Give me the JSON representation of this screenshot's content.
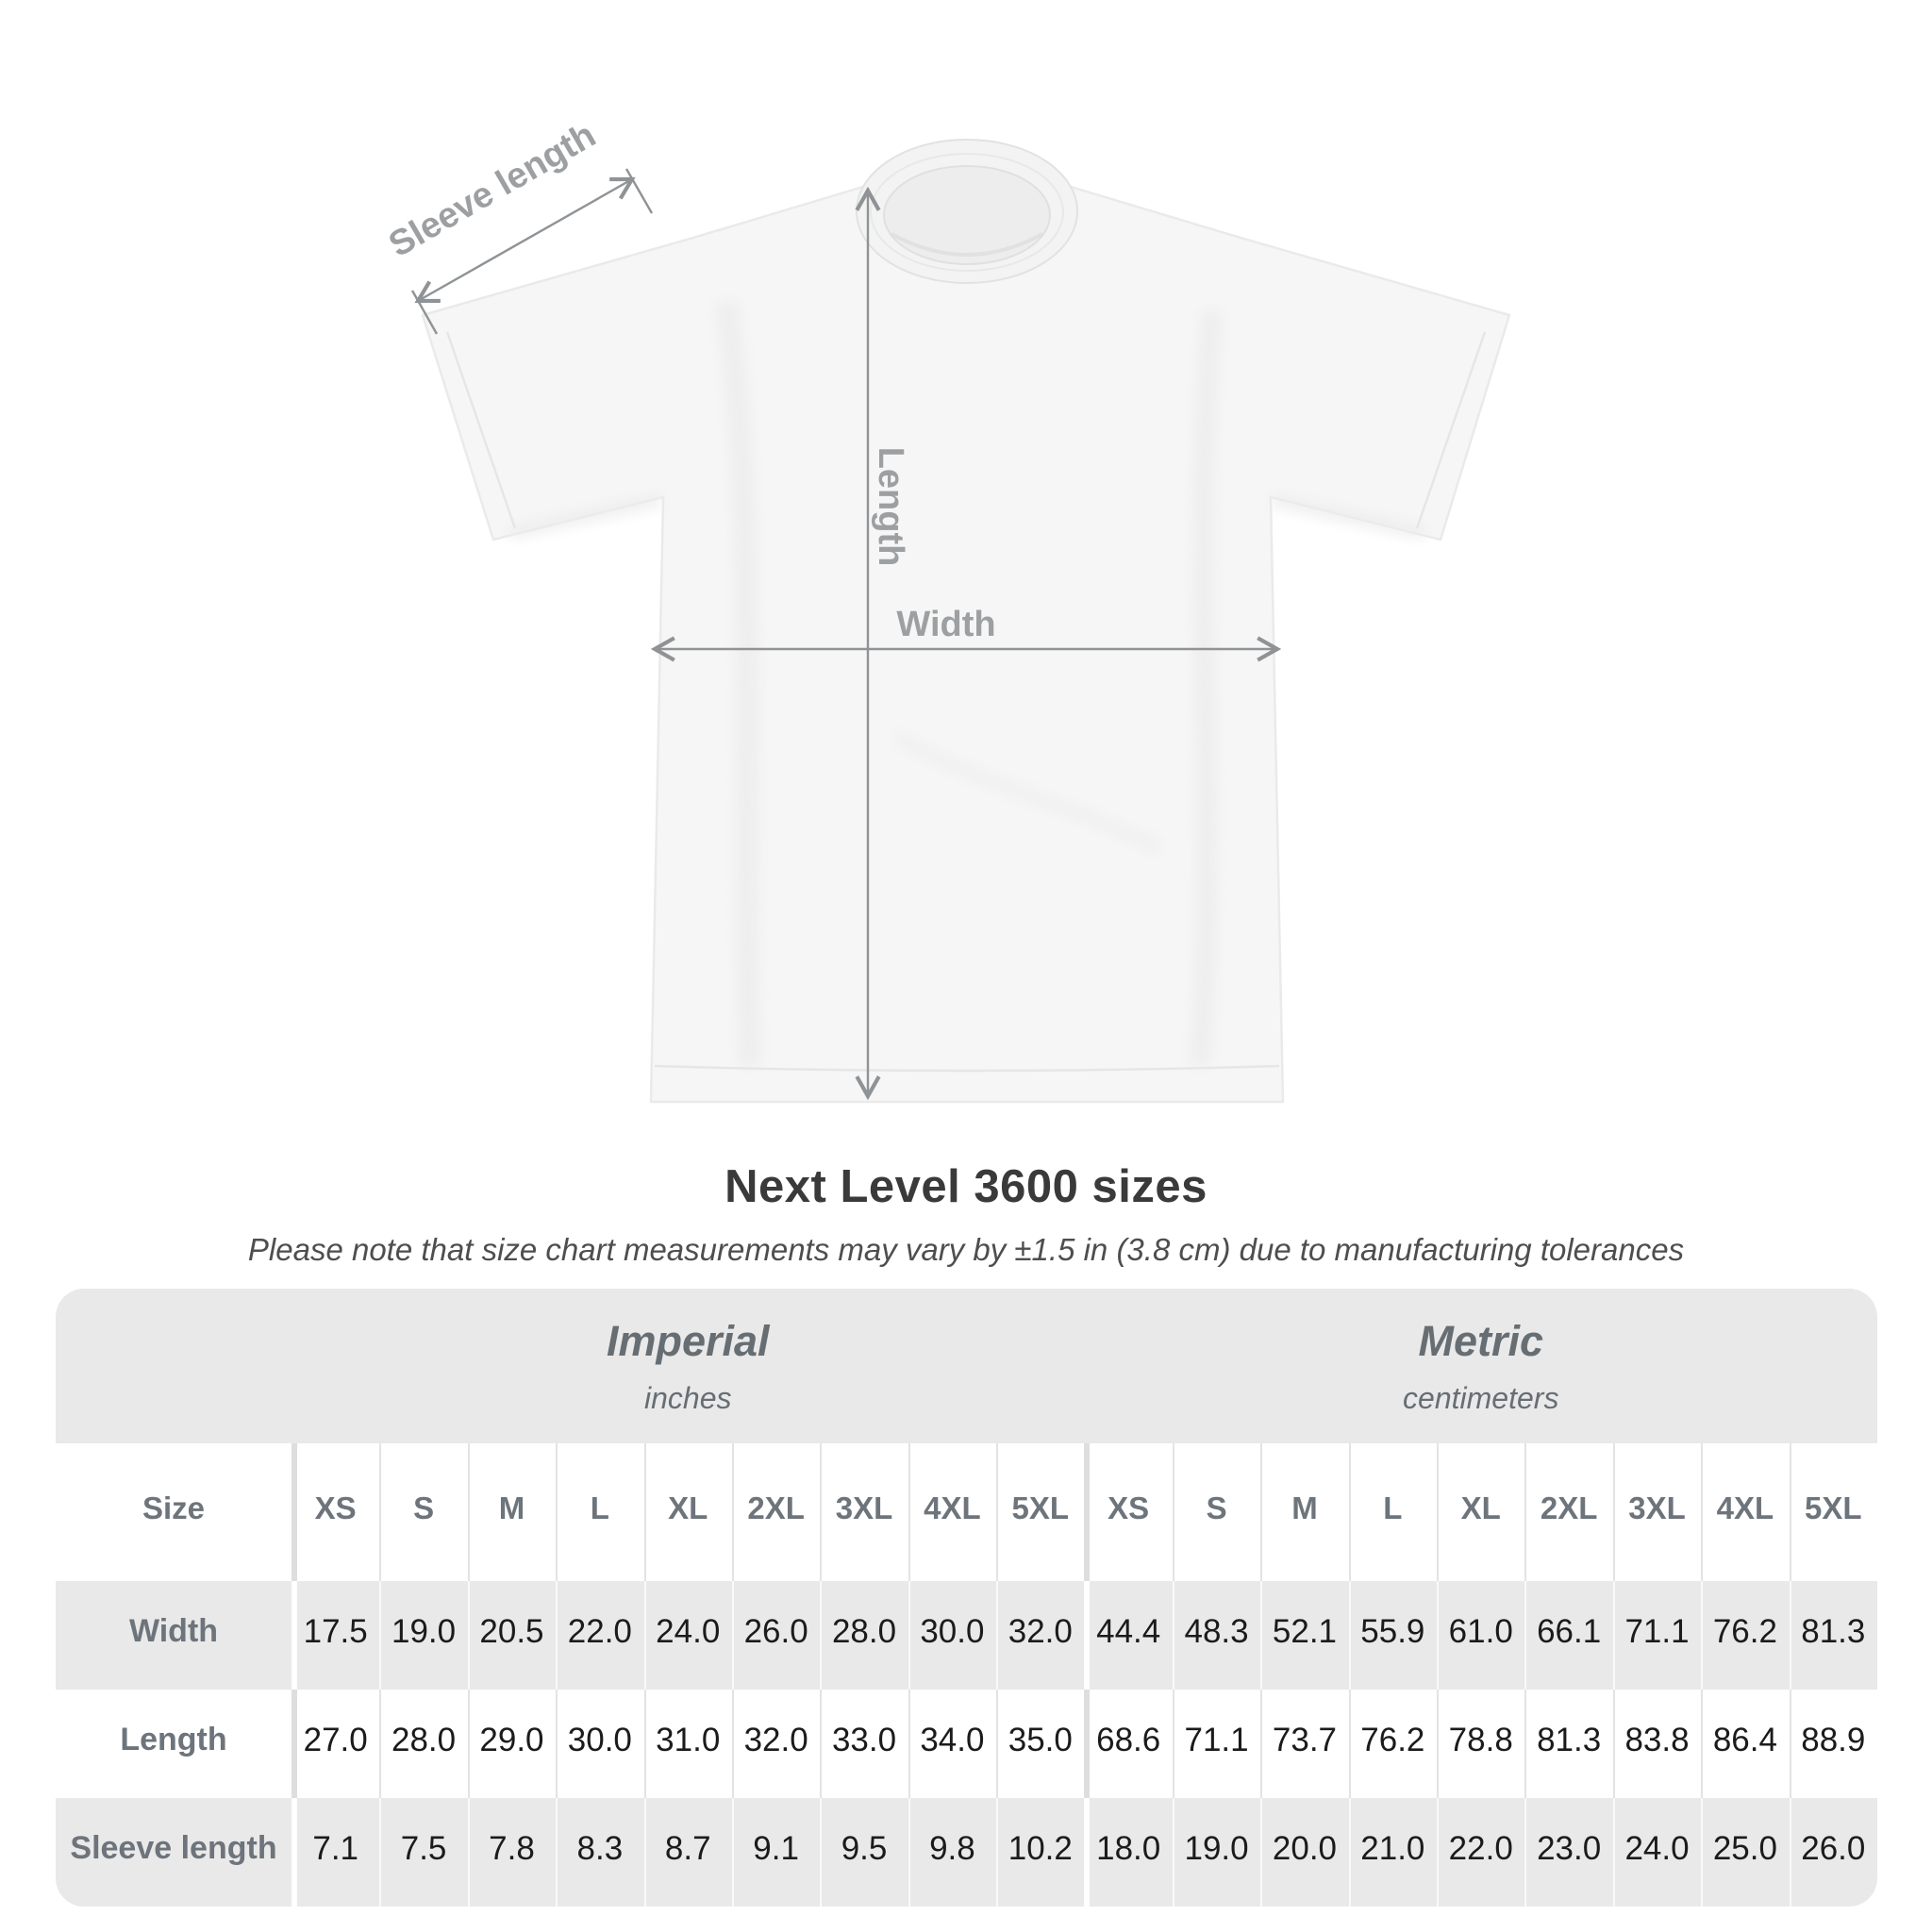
{
  "diagram": {
    "sleeve_label": "Sleeve length",
    "length_label": "Length",
    "width_label": "Width"
  },
  "title": "Next Level 3600 sizes",
  "subtitle": "Please note that size chart measurements may vary by ±1.5 in (3.8 cm) due to manufacturing tolerances",
  "table": {
    "unit_groups": [
      {
        "label": "Imperial",
        "sublabel": "inches"
      },
      {
        "label": "Metric",
        "sublabel": "centimeters"
      }
    ],
    "size_header": "Size",
    "sizes": [
      "XS",
      "S",
      "M",
      "L",
      "XL",
      "2XL",
      "3XL",
      "4XL",
      "5XL"
    ],
    "rows": [
      {
        "label": "Width",
        "imperial": [
          "17.5",
          "19.0",
          "20.5",
          "22.0",
          "24.0",
          "26.0",
          "28.0",
          "30.0",
          "32.0"
        ],
        "metric": [
          "44.4",
          "48.3",
          "52.1",
          "55.9",
          "61.0",
          "66.1",
          "71.1",
          "76.2",
          "81.3"
        ]
      },
      {
        "label": "Length",
        "imperial": [
          "27.0",
          "28.0",
          "29.0",
          "30.0",
          "31.0",
          "32.0",
          "33.0",
          "34.0",
          "35.0"
        ],
        "metric": [
          "68.6",
          "71.1",
          "73.7",
          "76.2",
          "78.8",
          "81.3",
          "83.8",
          "86.4",
          "88.9"
        ]
      },
      {
        "label": "Sleeve length",
        "imperial": [
          "7.1",
          "7.5",
          "7.8",
          "8.3",
          "8.7",
          "9.1",
          "9.5",
          "9.8",
          "10.2"
        ],
        "metric": [
          "18.0",
          "19.0",
          "20.0",
          "21.0",
          "22.0",
          "23.0",
          "24.0",
          "25.0",
          "26.0"
        ]
      }
    ]
  },
  "colors": {
    "background": "#ffffff",
    "shirt_fill": "#f6f6f6",
    "shirt_outline": "#eaeaea",
    "dimension_line": "#8f9396",
    "dimension_label": "#9da0a2",
    "title_text": "#3a3a3a",
    "subtitle_text": "#4e4e4e",
    "table_band": "#e9e9e9",
    "table_header_text": "#6d747b",
    "table_value_text": "#1b1b1b"
  }
}
